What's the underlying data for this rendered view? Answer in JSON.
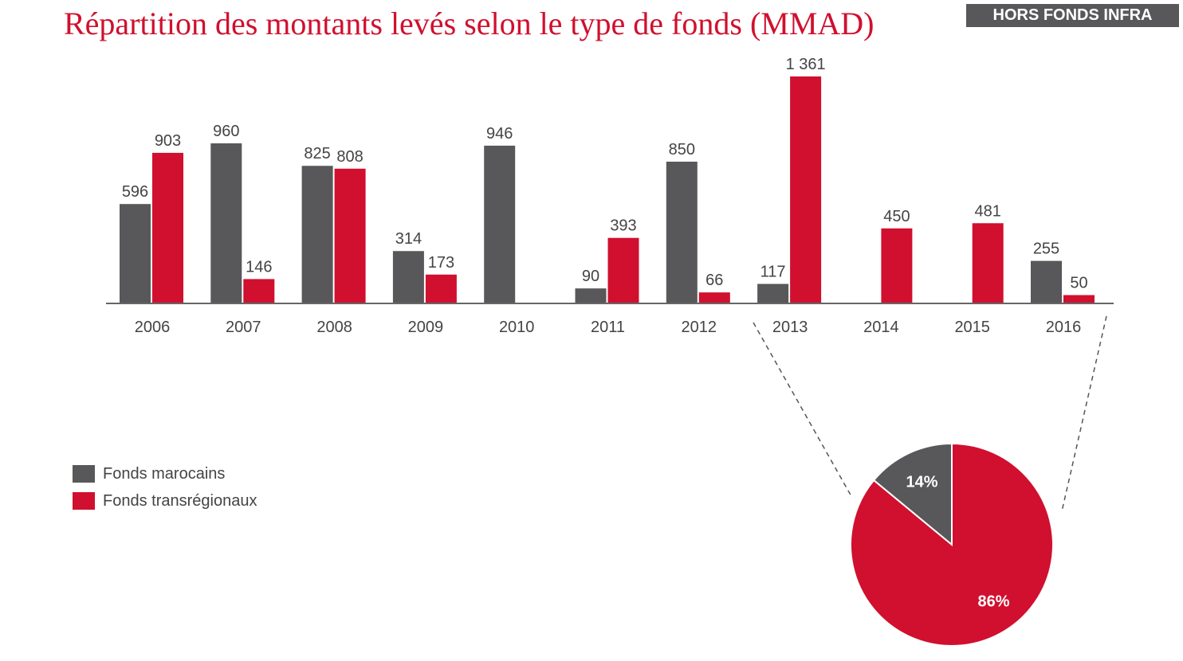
{
  "header": {
    "title": "Répartition des montants levés selon le type de fonds (MMAD)",
    "badge": "HORS FONDS INFRA"
  },
  "colors": {
    "marocains": "#58585a",
    "transregionaux": "#d0102e"
  },
  "chart_data": [
    {
      "type": "bar",
      "categories": [
        "2006",
        "2007",
        "2008",
        "2009",
        "2010",
        "2011",
        "2012",
        "2013",
        "2014",
        "2015",
        "2016"
      ],
      "series": [
        {
          "name": "Fonds marocains",
          "values": [
            596,
            960,
            825,
            314,
            946,
            90,
            850,
            117,
            null,
            null,
            255
          ],
          "labels": [
            "596",
            "960",
            "825",
            "314",
            "946",
            "90",
            "850",
            "117",
            "",
            "",
            "255"
          ]
        },
        {
          "name": "Fonds transrégionaux",
          "values": [
            903,
            146,
            808,
            173,
            null,
            393,
            66,
            1361,
            450,
            481,
            50
          ],
          "labels": [
            "903",
            "146",
            "808",
            "173",
            "",
            "393",
            "66",
            "1 361",
            "450",
            "481",
            "50"
          ]
        }
      ],
      "ylim": [
        0,
        1361
      ],
      "grid": false,
      "legend": "bottom-left"
    },
    {
      "type": "pie",
      "categories": [
        "Fonds marocains",
        "Fonds transrégionaux"
      ],
      "values": [
        14,
        86
      ],
      "labels": [
        "14%",
        "86%"
      ]
    }
  ]
}
